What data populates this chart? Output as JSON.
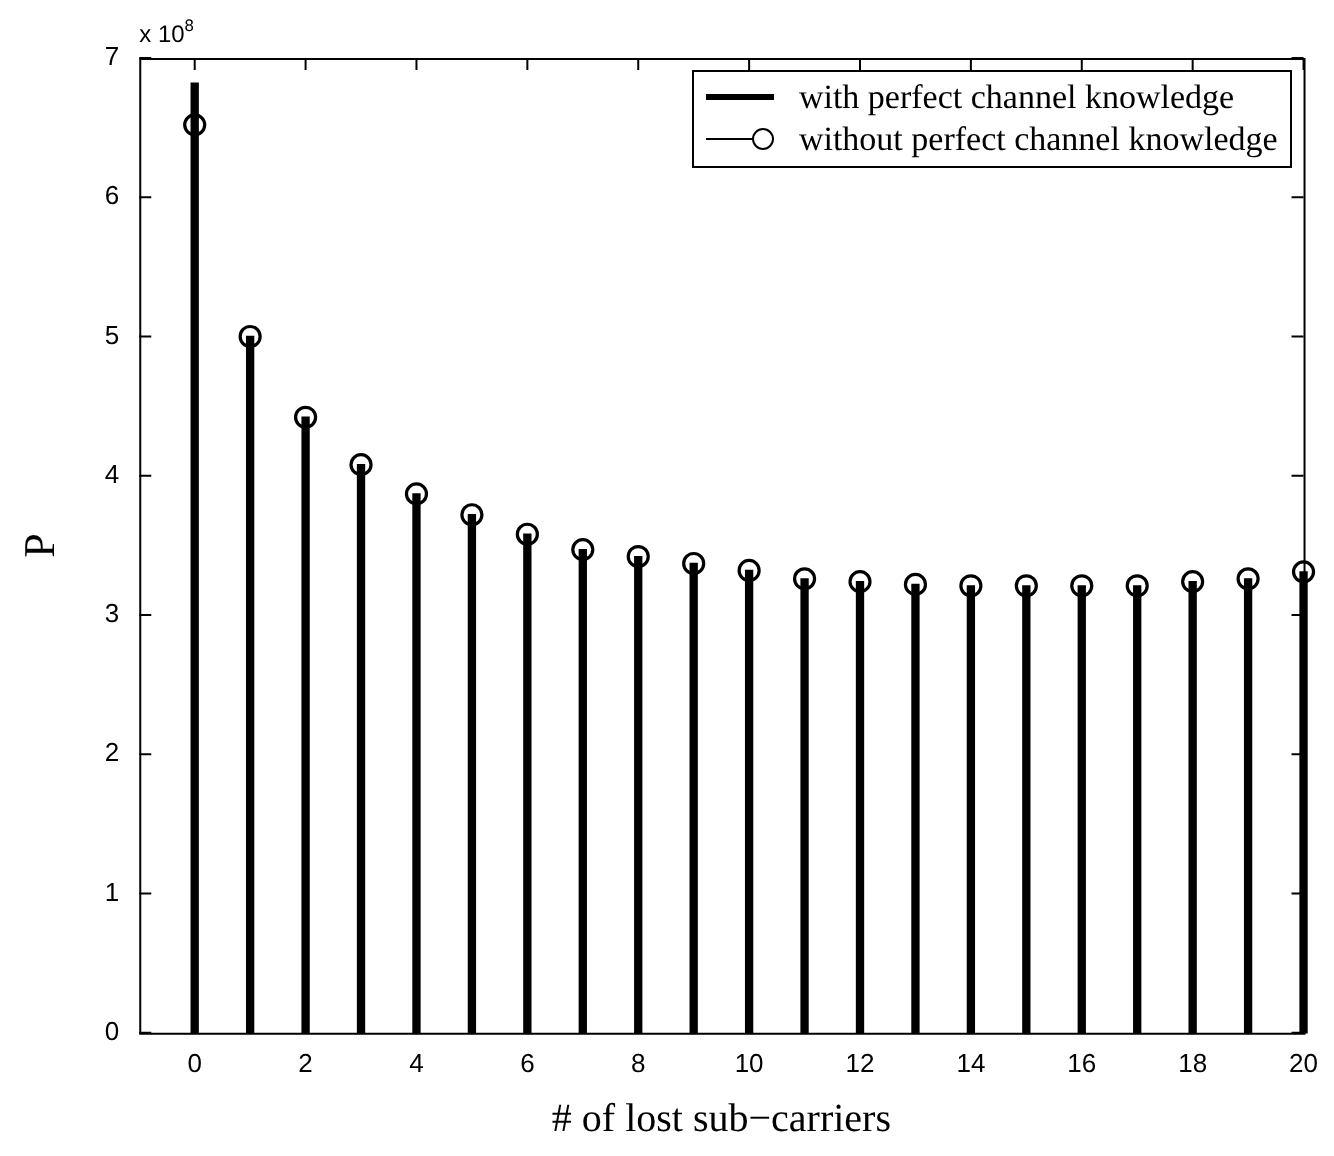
{
  "chart_data": {
    "type": "lollipop",
    "xlabel": "# of lost sub−carriers",
    "ylabel": "P",
    "annotations": [
      "x 10$^{8}$"
    ],
    "x": [
      0,
      1,
      2,
      3,
      4,
      5,
      6,
      7,
      8,
      9,
      10,
      11,
      12,
      13,
      14,
      15,
      16,
      17,
      18,
      19,
      20
    ],
    "series": [
      {
        "name": "with perfect channel knowledge",
        "type": "bar",
        "color": "#000000",
        "values": [
          6.82,
          5.0,
          4.42,
          4.08,
          3.87,
          3.72,
          3.58,
          3.47,
          3.42,
          3.37,
          3.32,
          3.26,
          3.24,
          3.22,
          3.21,
          3.21,
          3.21,
          3.21,
          3.24,
          3.26,
          3.31
        ]
      },
      {
        "name": "without perfect channel knowledge",
        "color": "#000000",
        "marker": "circle",
        "values": [
          6.52,
          5.0,
          4.42,
          4.08,
          3.87,
          3.72,
          3.58,
          3.47,
          3.42,
          3.37,
          3.32,
          3.26,
          3.24,
          3.22,
          3.21,
          3.21,
          3.21,
          3.21,
          3.24,
          3.26,
          3.31
        ]
      }
    ],
    "xlim": [
      -1,
      20
    ],
    "xticks": [
      0,
      2,
      4,
      6,
      8,
      10,
      12,
      14,
      16,
      18,
      20
    ],
    "ylim": [
      0,
      7
    ],
    "yticks": [
      0,
      1,
      2,
      3,
      4,
      5,
      6,
      7
    ],
    "grid": false,
    "legend": "top right"
  }
}
